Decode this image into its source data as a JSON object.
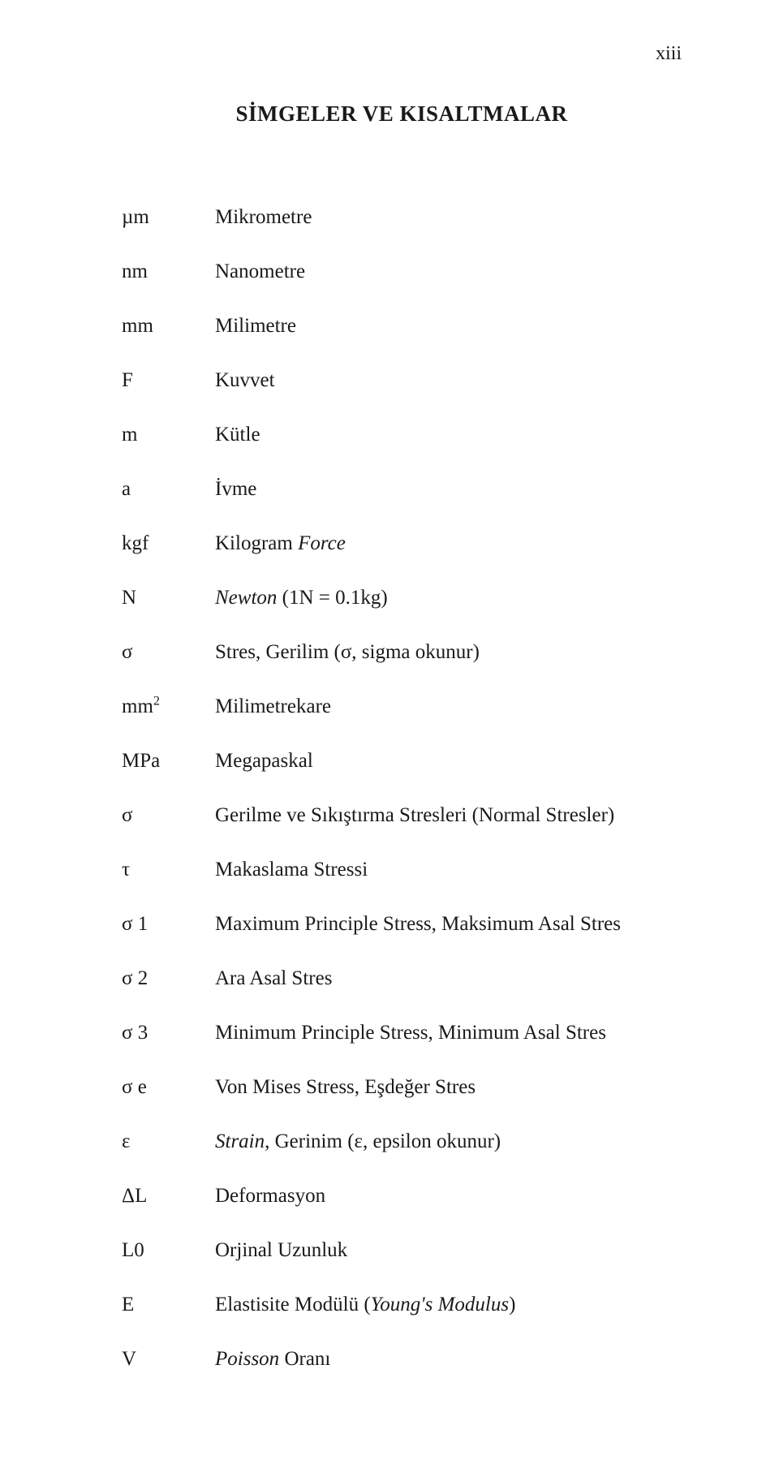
{
  "page_number": "xiii",
  "title": "SİMGELER VE KISALTMALAR",
  "rows": {
    "r0": {
      "sym": "µm",
      "def_plain": "Mikrometre"
    },
    "r1": {
      "sym": "nm",
      "def_plain": "Nanometre"
    },
    "r2": {
      "sym": "mm",
      "def_plain": "Milimetre"
    },
    "r3": {
      "sym": "F",
      "def_plain": "Kuvvet"
    },
    "r4": {
      "sym": "m",
      "def_plain": "Kütle"
    },
    "r5": {
      "sym": "a",
      "def_plain": "İvme"
    },
    "r6": {
      "sym": "kgf",
      "def_pre": "Kilogram ",
      "def_ital": "Force"
    },
    "r7": {
      "sym": "N",
      "def_ital": "Newton",
      "def_post": " (1N = 0.1kg)"
    },
    "r8": {
      "sym": "σ",
      "def_plain": "Stres, Gerilim (σ, sigma okunur)"
    },
    "r9": {
      "sym_pre": "mm",
      "sym_sup": "2",
      "def_plain": "Milimetrekare"
    },
    "r10": {
      "sym": "MPa",
      "def_plain": "Megapaskal"
    },
    "r11": {
      "sym": "σ",
      "def_plain": "Gerilme ve Sıkıştırma Stresleri (Normal Stresler)"
    },
    "r12": {
      "sym": "τ",
      "def_plain": "Makaslama Stressi"
    },
    "r13": {
      "sym": "σ 1",
      "def_plain": "Maximum Principle Stress, Maksimum Asal Stres"
    },
    "r14": {
      "sym": "σ 2",
      "def_plain": "Ara Asal Stres"
    },
    "r15": {
      "sym": "σ 3",
      "def_plain": "Minimum Principle Stress, Minimum Asal Stres"
    },
    "r16": {
      "sym": "σ e",
      "def_plain": "Von Mises Stress, Eşdeğer Stres"
    },
    "r17": {
      "sym": "ε",
      "def_ital": "Strain",
      "def_post": ", Gerinim (ε, epsilon okunur)"
    },
    "r18": {
      "sym": "ΔL",
      "def_plain": "Deformasyon"
    },
    "r19": {
      "sym": "L0",
      "def_plain": "Orjinal Uzunluk"
    },
    "r20": {
      "sym": "E",
      "def_pre": "Elastisite Modülü (",
      "def_ital": "Young's Modulus",
      "def_post": ")"
    },
    "r21": {
      "sym": "V",
      "def_ital": "Poisson",
      "def_post": " Oranı"
    }
  }
}
